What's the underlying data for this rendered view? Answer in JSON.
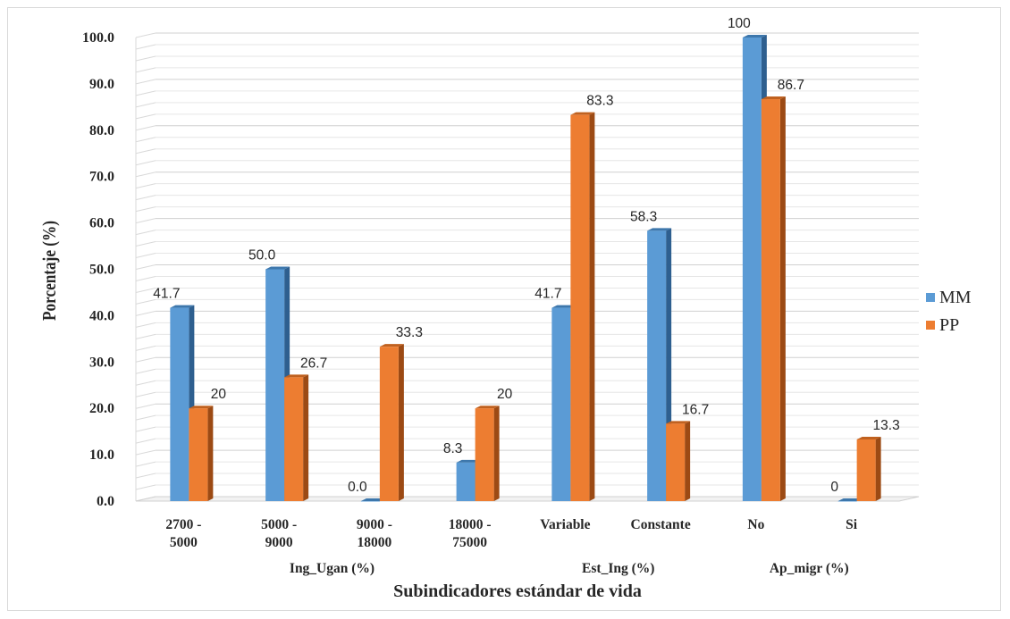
{
  "chart_data": {
    "type": "bar",
    "categories": [
      [
        "2700  -",
        "5000"
      ],
      [
        "5000 -",
        "9000"
      ],
      [
        "9000 -",
        "18000"
      ],
      [
        "18000 -",
        "75000"
      ],
      [
        "Variable"
      ],
      [
        "Constante"
      ],
      [
        "No"
      ],
      [
        "Si"
      ]
    ],
    "groups": [
      {
        "label": "Ing_Ugan (%)",
        "categories": [
          0,
          1,
          2,
          3
        ]
      },
      {
        "label": "Est_Ing (%)",
        "categories": [
          4,
          5
        ]
      },
      {
        "label": "Ap_migr (%)",
        "categories": [
          6,
          7
        ]
      }
    ],
    "series": [
      {
        "name": "MM",
        "color": "#5b9bd5",
        "values": [
          41.7,
          50.0,
          0.0,
          8.3,
          41.7,
          58.3,
          100,
          0
        ],
        "labels": [
          "41.7",
          "50.0",
          "0.0",
          "8.3",
          "41.7",
          "58.3",
          "100",
          "0"
        ]
      },
      {
        "name": "PP",
        "color": "#ed7d31",
        "values": [
          20,
          26.7,
          33.3,
          20,
          83.3,
          16.7,
          86.7,
          13.3
        ],
        "labels": [
          "20",
          "26.7",
          "33.3",
          "20",
          "83.3",
          "16.7",
          "86.7",
          "13.3"
        ]
      }
    ],
    "ylim": [
      0,
      100
    ],
    "yticks": [
      "0.0",
      "10.0",
      "20.0",
      "30.0",
      "40.0",
      "50.0",
      "60.0",
      "70.0",
      "80.0",
      "90.0",
      "100.0"
    ],
    "ylabel": "Porcentaje (%)",
    "xlabel": "Subindicadores estándar de vida",
    "legend_position": "right",
    "grid": true
  }
}
